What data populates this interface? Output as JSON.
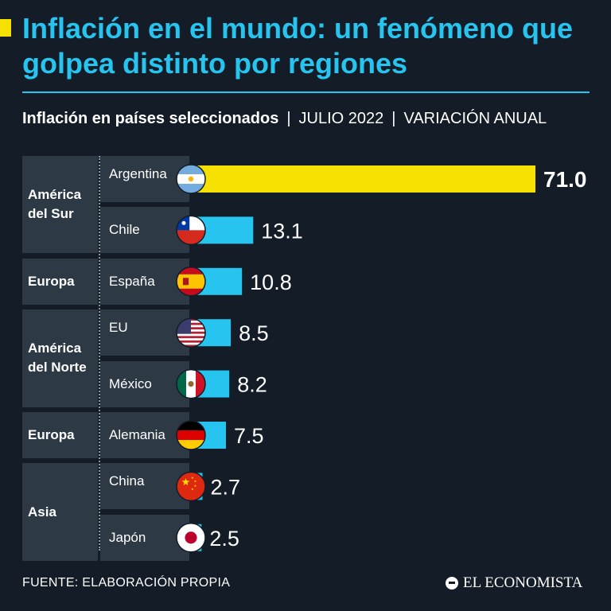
{
  "title": "Inflación en el mundo: un fenómeno que golpea distinto por regiones",
  "subtitle": {
    "main": "Inflación en países seleccionados",
    "date": "JULIO 2022",
    "measure": "VARIACIÓN ANUAL"
  },
  "colors": {
    "background": "#131c27",
    "accent": "#26c4ef",
    "highlight": "#f5e000",
    "panel": "#2e3946"
  },
  "chart_data": {
    "type": "bar",
    "orientation": "horizontal",
    "categories": [
      "Argentina",
      "Chile",
      "España",
      "EU",
      "México",
      "Alemania",
      "China",
      "Japón"
    ],
    "values": [
      71.0,
      13.1,
      10.8,
      8.5,
      8.2,
      7.5,
      2.7,
      2.5
    ],
    "value_labels": [
      "71.0",
      "13.1",
      "10.8",
      "8.5",
      "8.2",
      "7.5",
      "2.7",
      "2.5"
    ],
    "highlight_category": "Argentina",
    "regions": [
      {
        "label": "América del Sur",
        "countries": [
          "Argentina",
          "Chile"
        ]
      },
      {
        "label": "Europa",
        "countries": [
          "España"
        ]
      },
      {
        "label": "América del Norte",
        "countries": [
          "EU",
          "México"
        ]
      },
      {
        "label": "Europa",
        "countries": [
          "Alemania"
        ]
      },
      {
        "label": "Asia",
        "countries": [
          "China",
          "Japón"
        ]
      }
    ],
    "flags": [
      "argentina-flag-icon",
      "chile-flag-icon",
      "spain-flag-icon",
      "usa-flag-icon",
      "mexico-flag-icon",
      "germany-flag-icon",
      "china-flag-icon",
      "japan-flag-icon"
    ],
    "xlim": [
      0,
      71
    ]
  },
  "footer": {
    "source": "FUENTE: ELABORACIÓN PROPIA",
    "brand": "EL ECONOMISTA"
  }
}
